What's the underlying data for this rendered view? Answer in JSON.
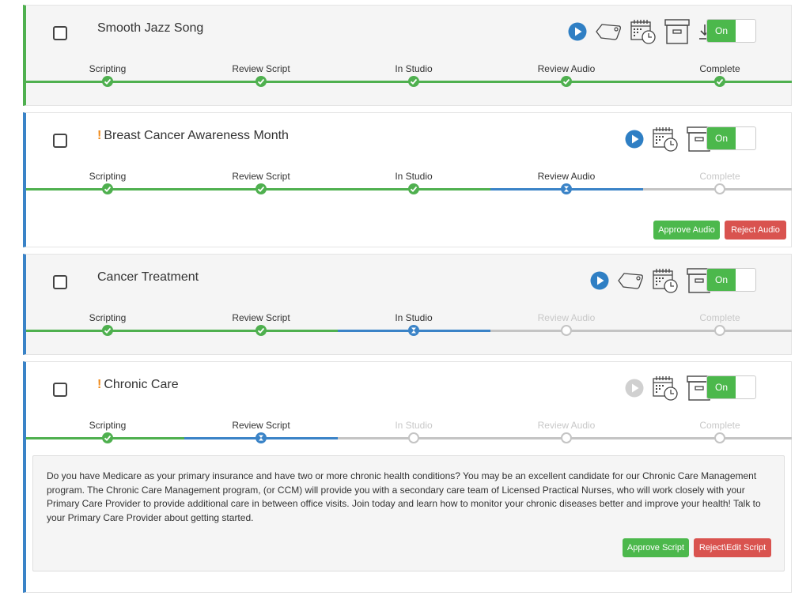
{
  "stage_names": [
    "Scripting",
    "Review Script",
    "In Studio",
    "Review Audio",
    "Complete"
  ],
  "cards": [
    {
      "title": "Smooth Jazz Song",
      "flag": "",
      "accent": "green",
      "toggle": "On",
      "icons": [
        "play-icon",
        "tag-icon",
        "calendar-clock-icon",
        "archive-icon",
        "download-icon"
      ],
      "stage_status": [
        "done",
        "done",
        "done",
        "done",
        "done"
      ]
    },
    {
      "title": "Breast Cancer Awareness Month",
      "flag": "!",
      "accent": "blue",
      "toggle": "On",
      "icons": [
        "play-icon",
        "calendar-clock-icon",
        "archive-icon"
      ],
      "stage_status": [
        "done",
        "done",
        "done",
        "current",
        "pending"
      ],
      "approve_label": "Approve Audio",
      "reject_label": "Reject Audio"
    },
    {
      "title": "Cancer Treatment",
      "flag": "",
      "accent": "blue",
      "toggle": "On",
      "icons": [
        "play-icon",
        "tag-icon",
        "calendar-clock-icon",
        "archive-icon"
      ],
      "stage_status": [
        "done",
        "done",
        "current",
        "pending",
        "pending"
      ]
    },
    {
      "title": "Chronic Care",
      "flag": "!",
      "accent": "blue",
      "toggle": "On",
      "icons": [
        "play-icon-disabled",
        "calendar-clock-icon",
        "archive-icon"
      ],
      "stage_status": [
        "done",
        "current",
        "pending",
        "pending",
        "pending"
      ],
      "script_text": "Do you have Medicare as your primary insurance and have two or more chronic health conditions? You may be an excellent candidate for our Chronic Care Management program. The Chronic Care Management program, (or CCM) will provide you with a secondary care team of Licensed Practical Nurses, who will work closely with your Primary Care Provider to provide additional care in between office visits. Join today and learn how to monitor your chronic diseases better and improve your health! Talk to your Primary Care Provider about getting started.",
      "approve_label": "Approve Script",
      "reject_label": "Reject\\Edit Script"
    }
  ],
  "colors": {
    "done": "#4fb04f",
    "current": "#3a83c7",
    "pending": "#c4c4c4",
    "flag": "#f08a1a",
    "approve": "#4cb84c",
    "reject": "#d9534f"
  }
}
